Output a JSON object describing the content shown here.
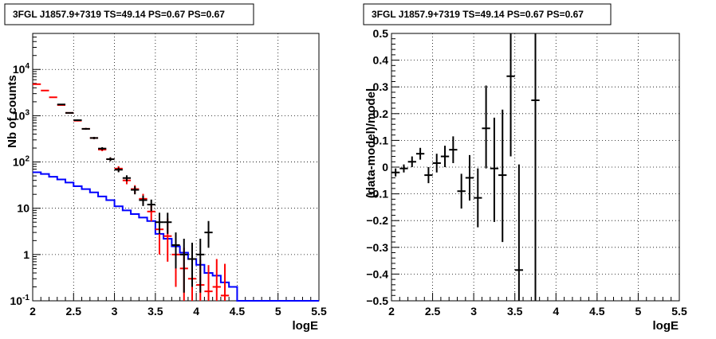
{
  "chart_data": [
    {
      "type": "histogram-errorbars",
      "title": "3FGL J1857.9+7319 TS=49.14 PS=0.67 PS=0.67",
      "xlabel": "logE",
      "ylabel": "Nb of counts",
      "xlim": [
        2,
        5.5
      ],
      "ylim": [
        0.1,
        60000
      ],
      "yscale": "log",
      "grid": true,
      "xticks": [
        2,
        2.5,
        3,
        3.5,
        4,
        4.5,
        5,
        5.5
      ],
      "xtick_labels": [
        "2",
        "2.5",
        "3",
        "3.5",
        "4",
        "4.5",
        "5",
        "5.5"
      ],
      "yticks": [
        0.1,
        1,
        10,
        100,
        1000,
        10000
      ],
      "ytick_labels": [
        "10^-1",
        "1",
        "10",
        "10^2",
        "10^3",
        "10^4"
      ],
      "bin_edges": [
        2.0,
        2.1,
        2.2,
        2.3,
        2.4,
        2.5,
        2.6,
        2.7,
        2.8,
        2.9,
        3.0,
        3.1,
        3.2,
        3.3,
        3.4,
        3.5,
        3.6,
        3.7,
        3.8,
        3.9,
        4.0,
        4.1,
        4.2,
        4.3,
        4.4,
        4.5,
        4.6,
        4.7,
        4.8,
        4.9,
        5.0,
        5.1,
        5.2,
        5.3,
        5.4,
        5.5
      ],
      "series": [
        {
          "color": "#0000ff",
          "style": "step",
          "values": [
            60,
            55,
            48,
            42,
            36,
            30,
            26,
            22,
            18,
            15,
            11,
            9,
            7.5,
            6.3,
            5.3,
            2.8,
            2.2,
            1.5,
            1.1,
            0.8,
            0.6,
            0.4,
            0.35,
            0.25,
            0.2,
            0.1,
            0.1,
            0.1,
            0.1,
            0.1,
            0.1,
            0.1,
            0.1,
            0.1,
            0.1
          ]
        },
        {
          "color": "#ff0000",
          "style": "errorbar",
          "x": [
            2.05,
            2.15,
            2.25,
            2.35,
            2.45,
            2.55,
            2.65,
            2.75,
            2.85,
            2.95,
            3.05,
            3.15,
            3.25,
            3.35,
            3.45,
            3.55,
            3.65,
            3.75,
            3.85,
            3.95,
            4.05,
            4.15,
            4.25,
            4.35
          ],
          "y": [
            4800,
            3500,
            2500,
            1700,
            1150,
            780,
            520,
            330,
            185,
            115,
            72,
            40,
            26,
            16,
            8.5,
            3.5,
            2.5,
            1.0,
            0.5,
            0.3,
            0.22,
            0.16,
            0.2,
            0.13
          ],
          "yerr_low": [
            70,
            60,
            50,
            40,
            34,
            28,
            23,
            18,
            14,
            11,
            9,
            7,
            5.5,
            4.5,
            3.3,
            2.5,
            1.8,
            0.8,
            0.41,
            0.2,
            0.12,
            0.06,
            0.1,
            0.03
          ],
          "yerr_high": [
            70,
            60,
            50,
            40,
            34,
            28,
            23,
            18,
            14,
            11,
            9,
            7,
            5.5,
            4.5,
            3.3,
            3.0,
            3.5,
            1.5,
            0.9,
            0.7,
            0.55,
            0.43,
            0.6,
            0.5
          ]
        },
        {
          "color": "#000000",
          "style": "errorbar",
          "x": [
            2.35,
            2.45,
            2.55,
            2.65,
            2.75,
            2.85,
            2.95,
            3.05,
            3.15,
            3.25,
            3.35,
            3.45,
            3.55,
            3.65,
            3.75,
            3.85,
            3.95,
            4.05,
            4.15
          ],
          "y": [
            1750,
            1150,
            800,
            520,
            330,
            195,
            115,
            68,
            45,
            25,
            15,
            12,
            5,
            5,
            1.6,
            1,
            0.8,
            1,
            3
          ],
          "yerr_low": [
            42,
            34,
            28,
            23,
            18,
            14,
            11,
            8,
            6.5,
            5,
            3.8,
            3.4,
            2.2,
            2.2,
            1.1,
            0.85,
            0.6,
            0.85,
            1.6
          ],
          "yerr_high": [
            42,
            34,
            28,
            23,
            18,
            14,
            11,
            8,
            6.5,
            5,
            3.8,
            3.4,
            3.0,
            3.0,
            1.4,
            1.2,
            1.0,
            1.2,
            2.3
          ]
        }
      ]
    },
    {
      "type": "scatter-errorbars",
      "title": "3FGL J1857.9+7319 TS=49.14 PS=0.67 PS=0.67",
      "xlabel": "logE",
      "ylabel": "(data-model)/model",
      "xlim": [
        2,
        5.5
      ],
      "ylim": [
        -0.5,
        0.5
      ],
      "grid": true,
      "xticks": [
        2,
        2.5,
        3,
        3.5,
        4,
        4.5,
        5,
        5.5
      ],
      "xtick_labels": [
        "2",
        "2.5",
        "3",
        "3.5",
        "4",
        "4.5",
        "5",
        "5.5"
      ],
      "yticks": [
        -0.5,
        -0.4,
        -0.3,
        -0.2,
        -0.1,
        0,
        0.1,
        0.2,
        0.3,
        0.4,
        0.5
      ],
      "ytick_labels": [
        "−0.5",
        "−0.4",
        "−0.3",
        "−0.2",
        "−0.1",
        "0",
        "0.1",
        "0.2",
        "0.3",
        "0.4",
        "0.5"
      ],
      "series": [
        {
          "color": "#000000",
          "x": [
            2.05,
            2.15,
            2.25,
            2.35,
            2.45,
            2.55,
            2.65,
            2.75,
            2.85,
            2.95,
            3.05,
            3.15,
            3.25,
            3.35,
            3.45,
            3.55,
            3.75
          ],
          "y": [
            -0.02,
            -0.005,
            0.02,
            0.05,
            -0.03,
            0.015,
            0.04,
            0.065,
            -0.09,
            -0.04,
            -0.115,
            0.145,
            -0.005,
            -0.03,
            0.34,
            -0.385,
            0.25
          ],
          "yerr_low": [
            0.015,
            0.015,
            0.02,
            0.022,
            0.03,
            0.035,
            0.04,
            0.05,
            0.065,
            0.085,
            0.11,
            0.15,
            0.2,
            0.25,
            0.3,
            0.115,
            0.75
          ],
          "yerr_high": [
            0.015,
            0.015,
            0.02,
            0.022,
            0.03,
            0.035,
            0.04,
            0.05,
            0.065,
            0.085,
            0.11,
            0.16,
            0.19,
            0.245,
            0.16,
            0.395,
            0.25
          ],
          "xerr": 0.05
        }
      ]
    }
  ]
}
